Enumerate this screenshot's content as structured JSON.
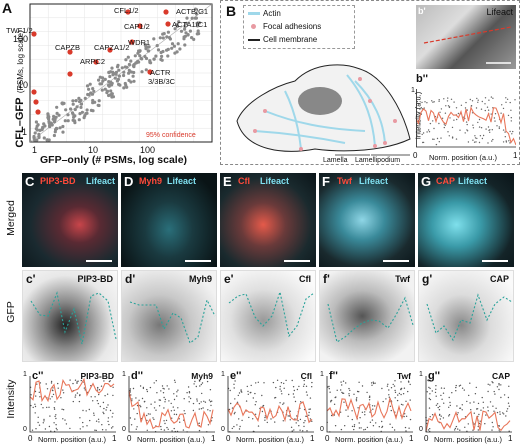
{
  "panelA": {
    "letter": "A",
    "xlabel": "GFP–only (# PSMs, log scale)",
    "ylabel_main": "CFL–GFP",
    "ylabel_sub": "(PSMs, log scale)",
    "xticks": [
      "1",
      "10",
      "100"
    ],
    "yticks": [
      "1",
      "10",
      "100"
    ],
    "confidence": "95% confidence",
    "labels": [
      "TWF1/2",
      "CFL1/2",
      "ACTB/G1",
      "CAP1/2",
      "ACTA1/C1",
      "WDR1",
      "CAPZB",
      "CAPZA1/2",
      "ARPC2",
      "ACTR",
      "3/3B/3C"
    ]
  },
  "panelB": {
    "letter": "B",
    "legend": [
      "Actin",
      "Focal adhesions",
      "Cell membrane"
    ],
    "region_labels": [
      "Lamella",
      "Lamellipodium"
    ],
    "inset_letter": "b'",
    "inset_label": "Lifeact",
    "plot_letter": "b''",
    "plot_ylabel": "Intensity (a.u.)",
    "plot_xlabel": "Norm. position (a.u.)",
    "plot_xticks": [
      "0",
      "1"
    ],
    "plot_ytick": "1"
  },
  "rowLabels": {
    "merged": "Merged",
    "gfp": "GFP",
    "intensity": "Intensity"
  },
  "columns": [
    {
      "letter": "C",
      "marker": "PIP3-BD",
      "lifeact": "Lifeact",
      "gfp_letter": "c'",
      "gfp_label": "PIP3-BD",
      "int_letter": "c''",
      "int_label": "PIP3-BD"
    },
    {
      "letter": "D",
      "marker": "Myh9",
      "lifeact": "Lifeact",
      "gfp_letter": "d'",
      "gfp_label": "Myh9",
      "int_letter": "d''",
      "int_label": "Myh9"
    },
    {
      "letter": "E",
      "marker": "Cfl",
      "lifeact": "Lifeact",
      "gfp_letter": "e'",
      "gfp_label": "Cfl",
      "int_letter": "e''",
      "int_label": "Cfl"
    },
    {
      "letter": "F",
      "marker": "Twf",
      "lifeact": "Lifeact",
      "gfp_letter": "f'",
      "gfp_label": "Twf",
      "int_letter": "f''",
      "int_label": "Twf"
    },
    {
      "letter": "G",
      "marker": "CAP",
      "lifeact": "Lifeact",
      "gfp_letter": "g'",
      "gfp_label": "CAP",
      "int_letter": "g''",
      "int_label": "CAP"
    }
  ],
  "intensityAxis": {
    "xlabel": "Norm. position (a.u.)",
    "x0": "0",
    "x1": "1",
    "y0": "0",
    "y1": "1"
  },
  "colors": {
    "red": "#d93a2b",
    "cyan": "#5ac8e0",
    "teal": "#2aa39a",
    "gray": "#888888",
    "orange": "#e8765a"
  }
}
